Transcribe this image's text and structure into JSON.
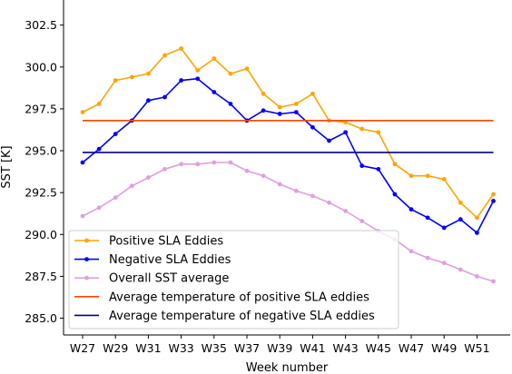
{
  "chart_data": {
    "type": "line",
    "xlabel": "Week number",
    "ylabel": "SST [K]",
    "ylim": [
      284.0,
      304.0
    ],
    "yticks": [
      285.0,
      287.5,
      290.0,
      292.5,
      295.0,
      297.5,
      300.0,
      302.5
    ],
    "ytick_labels": [
      "285.0",
      "287.5",
      "290.0",
      "292.5",
      "295.0",
      "297.5",
      "300.0",
      "302.5"
    ],
    "x": [
      "W27",
      "W28",
      "W29",
      "W30",
      "W31",
      "W32",
      "W33",
      "W34",
      "W35",
      "W36",
      "W37",
      "W38",
      "W39",
      "W40",
      "W41",
      "W42",
      "W43",
      "W44",
      "W45",
      "W46",
      "W47",
      "W48",
      "W49",
      "W50",
      "W51",
      "W52"
    ],
    "xtick_labels": [
      "W27",
      "W29",
      "W31",
      "W33",
      "W35",
      "W37",
      "W39",
      "W41",
      "W43",
      "W45",
      "W47",
      "W49",
      "W51"
    ],
    "grid": false,
    "legend_position": "lower-left",
    "series": [
      {
        "name": "Positive SLA Eddies",
        "kind": "line-marker",
        "color": "#ffa500",
        "values": [
          297.3,
          297.8,
          299.2,
          299.4,
          299.6,
          300.7,
          301.1,
          299.8,
          300.5,
          299.6,
          299.9,
          298.4,
          297.6,
          297.8,
          298.4,
          296.8,
          296.7,
          296.3,
          296.1,
          294.2,
          293.5,
          293.5,
          293.3,
          291.9,
          291.0,
          292.4
        ]
      },
      {
        "name": "Negative SLA Eddies",
        "kind": "line-marker",
        "color": "#0000ff",
        "values": [
          294.3,
          295.1,
          296.0,
          296.8,
          298.0,
          298.2,
          299.2,
          299.3,
          298.5,
          297.8,
          296.8,
          297.4,
          297.2,
          297.3,
          296.4,
          295.6,
          296.1,
          294.1,
          293.9,
          292.4,
          291.5,
          291.0,
          290.4,
          290.9,
          290.1,
          292.0
        ]
      },
      {
        "name": "Overall SST average",
        "kind": "line-marker",
        "color": "#dda0dd",
        "values": [
          291.1,
          291.6,
          292.2,
          292.9,
          293.4,
          293.9,
          294.2,
          294.2,
          294.3,
          294.3,
          293.8,
          293.5,
          293.0,
          292.6,
          292.3,
          291.9,
          291.4,
          290.8,
          290.2,
          289.7,
          289.0,
          288.6,
          288.3,
          287.9,
          287.5,
          287.2
        ]
      },
      {
        "name": "Average temperature of positive SLA eddies",
        "kind": "hline",
        "color": "#ff4500",
        "value": 296.8
      },
      {
        "name": "Average temperature of negative SLA eddies",
        "kind": "hline",
        "color": "#00008b",
        "value": 294.9
      }
    ]
  }
}
